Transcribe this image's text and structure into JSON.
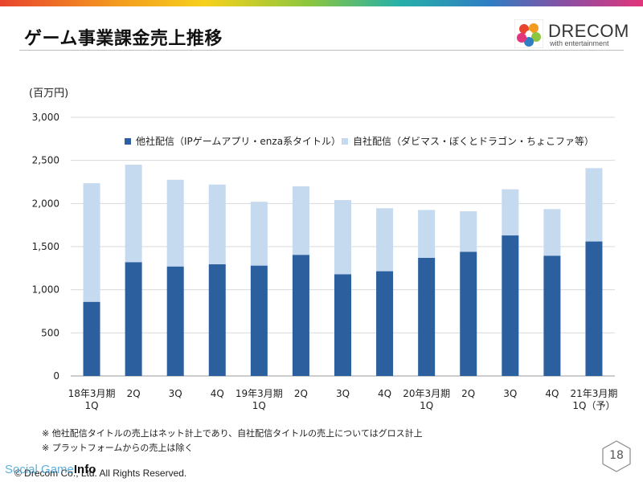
{
  "header": {
    "title": "ゲーム事業課金売上推移",
    "logo_text": "DRECOM",
    "logo_sub": "with entertainment"
  },
  "unit_label": "(百万円)",
  "chart_data": {
    "type": "bar",
    "stacked": true,
    "categories": [
      "18年3月期\n1Q",
      "2Q",
      "3Q",
      "4Q",
      "19年3月期\n1Q",
      "2Q",
      "3Q",
      "4Q",
      "20年3月期\n1Q",
      "2Q",
      "3Q",
      "4Q",
      "21年3月期\n1Q（予）"
    ],
    "series": [
      {
        "name": "他社配信（IPゲームアプリ・enza系タイトル）",
        "color": "#2b5f9e",
        "values": [
          860,
          1320,
          1270,
          1295,
          1280,
          1405,
          1180,
          1215,
          1370,
          1440,
          1630,
          1395,
          1560
        ]
      },
      {
        "name": "自社配信（ダビマス・ぼくとドラゴン・ちょこファ等）",
        "color": "#c5d9ef",
        "values": [
          1375,
          1130,
          1005,
          925,
          740,
          795,
          860,
          730,
          555,
          470,
          535,
          540,
          850
        ]
      }
    ],
    "ylim": [
      0,
      3000
    ],
    "yticks": [
      0,
      500,
      1000,
      1500,
      2000,
      2500,
      3000
    ],
    "ytick_labels": [
      "0",
      "500",
      "1,000",
      "1,500",
      "2,000",
      "2,500",
      "3,000"
    ],
    "grid": true,
    "legend_position": "top"
  },
  "footnotes": [
    "※ 他社配信タイトルの売上はネット計上であり、自社配信タイトルの売上についてはグロス計上",
    "※ プラットフォームからの売上は除く"
  ],
  "copyright": "© Drecom Co., Ltd. All Rights Reserved.",
  "watermark": {
    "prefix": "Social Game",
    "suffix": "Info"
  },
  "page_number": "18"
}
